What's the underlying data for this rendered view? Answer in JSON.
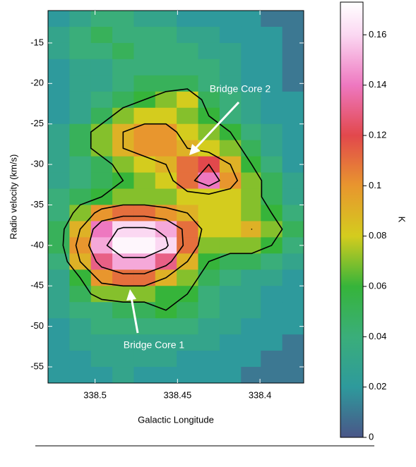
{
  "chart_data": {
    "type": "heatmap",
    "x_label": "Galactic Longitude",
    "y_label": "Radio velocity (km/s)",
    "colorbar_label": "K",
    "x": [
      338.522,
      338.509,
      338.496,
      338.483,
      338.47,
      338.457,
      338.444,
      338.431,
      338.418,
      338.405,
      338.393,
      338.38
    ],
    "y": [
      -12,
      -14,
      -16,
      -18,
      -20,
      -22,
      -24,
      -26,
      -28,
      -30,
      -32,
      -34,
      -36,
      -38,
      -40,
      -42,
      -44,
      -46,
      -48,
      -50,
      -52,
      -54,
      -56
    ],
    "z": [
      [
        0.02,
        0.03,
        0.04,
        0.04,
        0.03,
        0.03,
        0.02,
        0.02,
        0.02,
        0.02,
        0.01,
        0.01
      ],
      [
        0.03,
        0.04,
        0.05,
        0.04,
        0.04,
        0.04,
        0.03,
        0.03,
        0.02,
        0.02,
        0.02,
        0.01
      ],
      [
        0.03,
        0.04,
        0.04,
        0.05,
        0.04,
        0.04,
        0.04,
        0.03,
        0.03,
        0.02,
        0.02,
        0.01
      ],
      [
        0.02,
        0.03,
        0.03,
        0.04,
        0.04,
        0.04,
        0.04,
        0.04,
        0.03,
        0.02,
        0.02,
        0.01
      ],
      [
        0.02,
        0.03,
        0.03,
        0.04,
        0.05,
        0.05,
        0.05,
        0.04,
        0.03,
        0.02,
        0.02,
        0.01
      ],
      [
        0.02,
        0.03,
        0.04,
        0.05,
        0.06,
        0.07,
        0.08,
        0.05,
        0.04,
        0.03,
        0.02,
        0.02
      ],
      [
        0.02,
        0.03,
        0.05,
        0.07,
        0.08,
        0.08,
        0.07,
        0.06,
        0.04,
        0.03,
        0.02,
        0.02
      ],
      [
        0.03,
        0.05,
        0.07,
        0.09,
        0.1,
        0.1,
        0.08,
        0.07,
        0.06,
        0.04,
        0.03,
        0.02
      ],
      [
        0.03,
        0.05,
        0.07,
        0.09,
        0.1,
        0.1,
        0.09,
        0.08,
        0.07,
        0.05,
        0.03,
        0.02
      ],
      [
        0.03,
        0.04,
        0.05,
        0.07,
        0.08,
        0.09,
        0.11,
        0.12,
        0.09,
        0.06,
        0.04,
        0.02
      ],
      [
        0.03,
        0.04,
        0.05,
        0.06,
        0.07,
        0.08,
        0.11,
        0.14,
        0.1,
        0.07,
        0.05,
        0.03
      ],
      [
        0.04,
        0.05,
        0.06,
        0.07,
        0.07,
        0.07,
        0.08,
        0.08,
        0.08,
        0.07,
        0.05,
        0.03
      ],
      [
        0.04,
        0.07,
        0.1,
        0.11,
        0.11,
        0.1,
        0.09,
        0.08,
        0.08,
        0.07,
        0.06,
        0.04
      ],
      [
        0.05,
        0.09,
        0.14,
        0.16,
        0.16,
        0.15,
        0.11,
        0.08,
        0.08,
        0.09,
        0.07,
        0.05
      ],
      [
        0.05,
        0.1,
        0.15,
        0.17,
        0.17,
        0.16,
        0.11,
        0.07,
        0.07,
        0.07,
        0.06,
        0.04
      ],
      [
        0.04,
        0.09,
        0.13,
        0.15,
        0.15,
        0.13,
        0.09,
        0.06,
        0.05,
        0.05,
        0.04,
        0.03
      ],
      [
        0.03,
        0.06,
        0.1,
        0.11,
        0.11,
        0.09,
        0.07,
        0.05,
        0.04,
        0.03,
        0.03,
        0.02
      ],
      [
        0.03,
        0.05,
        0.07,
        0.07,
        0.07,
        0.06,
        0.06,
        0.04,
        0.03,
        0.03,
        0.02,
        0.02
      ],
      [
        0.03,
        0.04,
        0.04,
        0.05,
        0.05,
        0.06,
        0.05,
        0.04,
        0.03,
        0.03,
        0.02,
        0.02
      ],
      [
        0.02,
        0.03,
        0.04,
        0.04,
        0.04,
        0.04,
        0.04,
        0.03,
        0.03,
        0.02,
        0.02,
        0.02
      ],
      [
        0.02,
        0.03,
        0.03,
        0.03,
        0.03,
        0.03,
        0.03,
        0.03,
        0.02,
        0.02,
        0.02,
        0.01
      ],
      [
        0.02,
        0.02,
        0.03,
        0.03,
        0.03,
        0.03,
        0.02,
        0.02,
        0.02,
        0.02,
        0.01,
        0.01
      ],
      [
        0.02,
        0.02,
        0.02,
        0.03,
        0.02,
        0.02,
        0.02,
        0.02,
        0.02,
        0.01,
        0.01,
        0.01
      ]
    ],
    "xlim": [
      338.5285,
      338.3735
    ],
    "ylim": [
      -57,
      -11
    ],
    "xticks": [
      338.5,
      338.45,
      338.4
    ],
    "yticks": [
      -15,
      -20,
      -25,
      -30,
      -35,
      -40,
      -45,
      -50,
      -55
    ],
    "clim": [
      0,
      0.173
    ],
    "cticks": [
      0,
      0.02,
      0.04,
      0.06,
      0.08,
      0.1,
      0.12,
      0.14,
      0.16
    ],
    "colormap": [
      [
        0,
        "#4a5688"
      ],
      [
        0.02,
        "#2e9a9c"
      ],
      [
        0.04,
        "#3aae7a"
      ],
      [
        0.06,
        "#36b43a"
      ],
      [
        0.08,
        "#d4cc1e"
      ],
      [
        0.1,
        "#e8962e"
      ],
      [
        0.12,
        "#e2484c"
      ],
      [
        0.14,
        "#ee78c0"
      ],
      [
        0.16,
        "#fbd8f2"
      ],
      [
        0.173,
        "#ffffff"
      ]
    ],
    "contour_levels": [
      0.06,
      0.09,
      0.12,
      0.155
    ],
    "contour_color": "#000000",
    "annotations": [
      {
        "text": "Bridge Core 2"
      },
      {
        "text": "Bridge Core 1"
      }
    ]
  }
}
